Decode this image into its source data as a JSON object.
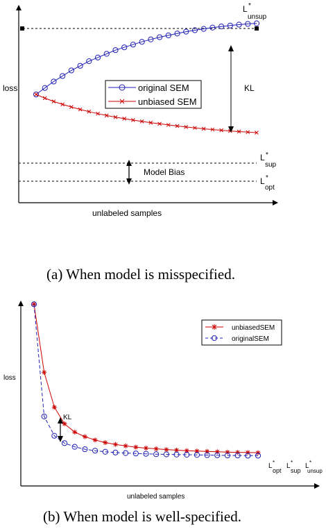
{
  "chart_data": [
    {
      "type": "line",
      "caption": "(a)  When model is misspecified.",
      "xlabel": "unlabeled samples",
      "ylabel": "loss",
      "ylim": [
        0,
        10
      ],
      "legend": {
        "placement": "center",
        "entries": [
          "original SEM",
          "unbiased SEM"
        ]
      },
      "x": [
        0,
        1,
        2,
        3,
        4,
        5,
        6,
        7,
        8,
        9,
        10,
        11,
        12,
        13,
        14,
        15,
        16,
        17,
        18,
        19,
        20,
        21,
        22,
        23,
        24,
        25
      ],
      "series": [
        {
          "name": "original SEM",
          "color": "#1f1fb4",
          "marker": "circle",
          "values": [
            5.6,
            5.95,
            6.3,
            6.6,
            6.9,
            7.15,
            7.4,
            7.6,
            7.8,
            8.0,
            8.15,
            8.3,
            8.45,
            8.58,
            8.7,
            8.8,
            8.9,
            9.0,
            9.08,
            9.15,
            9.22,
            9.28,
            9.33,
            9.38,
            9.42,
            9.45
          ]
        },
        {
          "name": "unbiased SEM",
          "color": "#cc0000",
          "marker": "x",
          "values": [
            5.6,
            5.4,
            5.22,
            5.06,
            4.92,
            4.79,
            4.67,
            4.56,
            4.46,
            4.37,
            4.29,
            4.21,
            4.14,
            4.07,
            4.01,
            3.95,
            3.89,
            3.84,
            3.79,
            3.74,
            3.7,
            3.66,
            3.62,
            3.59,
            3.56,
            3.53
          ]
        }
      ],
      "reference_lines": [
        {
          "label_main": "L",
          "label_sub": "unsup",
          "value": 9.8
        },
        {
          "label_main": "L",
          "label_sub": "sup",
          "value": 2.2
        },
        {
          "label_main": "L",
          "label_sub": "opt",
          "value": 1.2
        }
      ],
      "annotations": [
        "KL",
        "Model Bias"
      ]
    },
    {
      "type": "line",
      "caption": "(b)  When model is well-specified.",
      "xlabel": "unlabeled samples",
      "ylabel": "loss",
      "ylim": [
        0,
        10
      ],
      "legend": {
        "placement": "top-right",
        "entries": [
          "unbiasedSEM",
          "originalSEM"
        ]
      },
      "x": [
        0,
        1,
        2,
        3,
        4,
        5,
        6,
        7,
        8,
        9,
        10,
        11,
        12,
        13,
        14,
        15,
        16,
        17,
        18,
        19,
        20,
        21,
        22
      ],
      "series": [
        {
          "name": "unbiasedSEM",
          "color": "#cc0000",
          "marker": "star",
          "values": [
            9.5,
            5.8,
            3.9,
            3.0,
            2.55,
            2.3,
            2.12,
            1.98,
            1.88,
            1.8,
            1.73,
            1.68,
            1.64,
            1.6,
            1.57,
            1.54,
            1.52,
            1.5,
            1.48,
            1.46,
            1.45,
            1.44,
            1.43
          ]
        },
        {
          "name": "originalSEM",
          "color": "#1f1fb4",
          "marker": "circle",
          "values": [
            9.5,
            3.4,
            2.35,
            1.95,
            1.75,
            1.62,
            1.54,
            1.48,
            1.44,
            1.41,
            1.39,
            1.37,
            1.35,
            1.34,
            1.33,
            1.32,
            1.31,
            1.3,
            1.29,
            1.28,
            1.28,
            1.27,
            1.27
          ]
        }
      ],
      "reference_labels": [
        {
          "label_main": "L",
          "label_sub": "opt"
        },
        {
          "label_main": "L",
          "label_sub": "sup"
        },
        {
          "label_main": "L",
          "label_sub": "unsup"
        }
      ],
      "annotations": [
        "KL"
      ]
    }
  ]
}
